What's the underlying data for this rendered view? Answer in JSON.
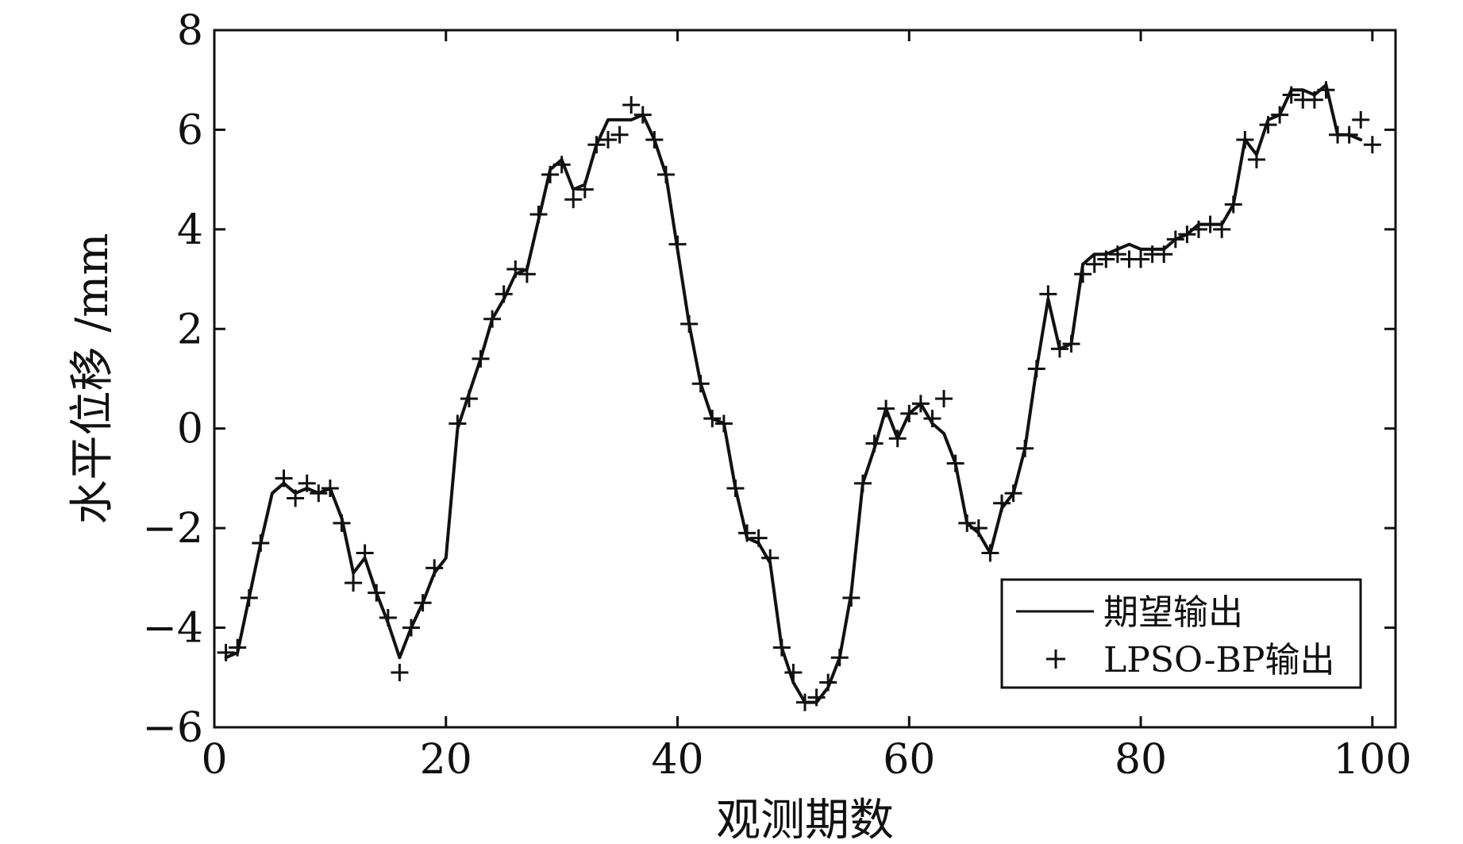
{
  "chart_data": {
    "type": "line",
    "title": "",
    "xlabel": "观测期数",
    "ylabel": "水平位移 /mm",
    "xlim": [
      0,
      102
    ],
    "ylim": [
      -6,
      8
    ],
    "xticks": [
      0,
      20,
      40,
      60,
      80,
      100
    ],
    "yticks": [
      -6,
      -4,
      -2,
      0,
      2,
      4,
      6,
      8
    ],
    "xtick_labels": [
      "0",
      "20",
      "40",
      "60",
      "80",
      "100"
    ],
    "ytick_labels": [
      "−6",
      "−4",
      "−2",
      "0",
      "2",
      "4",
      "6",
      "8"
    ],
    "grid": false,
    "legend_position": "bottom-right",
    "series": [
      {
        "name": "期望输出",
        "style": "line",
        "color": "#111111",
        "x": [
          1,
          2,
          3,
          4,
          5,
          6,
          7,
          8,
          9,
          10,
          11,
          12,
          13,
          14,
          15,
          16,
          17,
          18,
          19,
          20,
          21,
          22,
          23,
          24,
          25,
          26,
          27,
          28,
          29,
          30,
          31,
          32,
          33,
          34,
          35,
          36,
          37,
          38,
          39,
          40,
          41,
          42,
          43,
          44,
          45,
          46,
          47,
          48,
          49,
          50,
          51,
          52,
          53,
          54,
          55,
          56,
          57,
          58,
          59,
          60,
          61,
          62,
          63,
          64,
          65,
          66,
          67,
          68,
          69,
          70,
          71,
          72,
          73,
          74,
          75,
          76,
          77,
          78,
          79,
          80,
          81,
          82,
          83,
          84,
          85,
          86,
          87,
          88,
          89,
          90,
          91,
          92,
          93,
          94,
          95,
          96,
          97,
          98,
          99
        ],
        "y": [
          -4.6,
          -4.5,
          -3.4,
          -2.3,
          -1.3,
          -1.1,
          -1.3,
          -1.2,
          -1.3,
          -1.2,
          -1.8,
          -2.9,
          -2.6,
          -3.3,
          -3.9,
          -4.6,
          -4.0,
          -3.5,
          -2.9,
          -2.6,
          0.0,
          0.7,
          1.4,
          2.2,
          2.6,
          3.1,
          3.2,
          4.2,
          5.2,
          5.4,
          4.8,
          4.9,
          5.7,
          6.2,
          6.2,
          6.2,
          6.3,
          5.8,
          5.1,
          3.6,
          2.1,
          0.9,
          0.2,
          0.1,
          -1.2,
          -2.2,
          -2.3,
          -2.7,
          -4.4,
          -5.1,
          -5.5,
          -5.5,
          -5.2,
          -4.6,
          -3.3,
          -1.1,
          -0.4,
          0.4,
          -0.2,
          0.3,
          0.5,
          0.1,
          -0.1,
          -0.7,
          -1.9,
          -2.1,
          -2.5,
          -1.6,
          -1.3,
          -0.4,
          1.2,
          2.6,
          1.6,
          1.7,
          3.3,
          3.5,
          3.5,
          3.6,
          3.7,
          3.6,
          3.6,
          3.6,
          3.8,
          3.9,
          4.1,
          4.1,
          4.1,
          4.5,
          5.8,
          5.5,
          6.2,
          6.3,
          6.8,
          6.8,
          6.7,
          6.9,
          5.9,
          5.9,
          5.8
        ]
      },
      {
        "name": "LPSO-BP输出",
        "style": "marker",
        "marker": "+",
        "color": "#111111",
        "x": [
          1,
          2,
          3,
          4,
          6,
          7,
          8,
          9,
          10,
          11,
          12,
          13,
          14,
          15,
          16,
          17,
          18,
          19,
          21,
          22,
          23,
          24,
          25,
          26,
          27,
          28,
          29,
          30,
          31,
          32,
          33,
          34,
          35,
          36,
          37,
          38,
          39,
          40,
          41,
          42,
          43,
          44,
          45,
          46,
          47,
          48,
          49,
          50,
          51,
          52,
          53,
          54,
          55,
          56,
          57,
          58,
          59,
          60,
          61,
          62,
          63,
          64,
          65,
          66,
          67,
          68,
          69,
          70,
          71,
          72,
          73,
          74,
          75,
          76,
          77,
          78,
          79,
          80,
          81,
          82,
          83,
          84,
          85,
          86,
          87,
          88,
          89,
          90,
          91,
          92,
          93,
          94,
          95,
          96,
          97,
          98,
          99,
          100
        ],
        "y": [
          -4.5,
          -4.4,
          -3.4,
          -2.3,
          -1.0,
          -1.4,
          -1.1,
          -1.3,
          -1.2,
          -1.9,
          -3.1,
          -2.5,
          -3.3,
          -3.8,
          -4.9,
          -4.0,
          -3.5,
          -2.8,
          0.1,
          0.6,
          1.4,
          2.2,
          2.7,
          3.2,
          3.1,
          4.3,
          5.1,
          5.3,
          4.6,
          4.8,
          5.7,
          5.8,
          5.9,
          6.5,
          6.3,
          5.8,
          5.1,
          3.7,
          2.1,
          0.9,
          0.2,
          0.1,
          -1.2,
          -2.1,
          -2.2,
          -2.6,
          -4.4,
          -4.9,
          -5.5,
          -5.4,
          -5.1,
          -4.6,
          -3.4,
          -1.1,
          -0.3,
          0.4,
          -0.2,
          0.3,
          0.5,
          0.2,
          0.6,
          -0.7,
          -1.9,
          -2.0,
          -2.5,
          -1.5,
          -1.3,
          -0.4,
          1.2,
          2.7,
          1.6,
          1.7,
          3.1,
          3.3,
          3.4,
          3.5,
          3.4,
          3.4,
          3.5,
          3.5,
          3.8,
          3.9,
          4.0,
          4.1,
          4.0,
          4.5,
          5.8,
          5.4,
          6.1,
          6.3,
          6.7,
          6.6,
          6.6,
          6.8,
          5.9,
          5.9,
          6.2,
          5.7
        ]
      }
    ]
  }
}
